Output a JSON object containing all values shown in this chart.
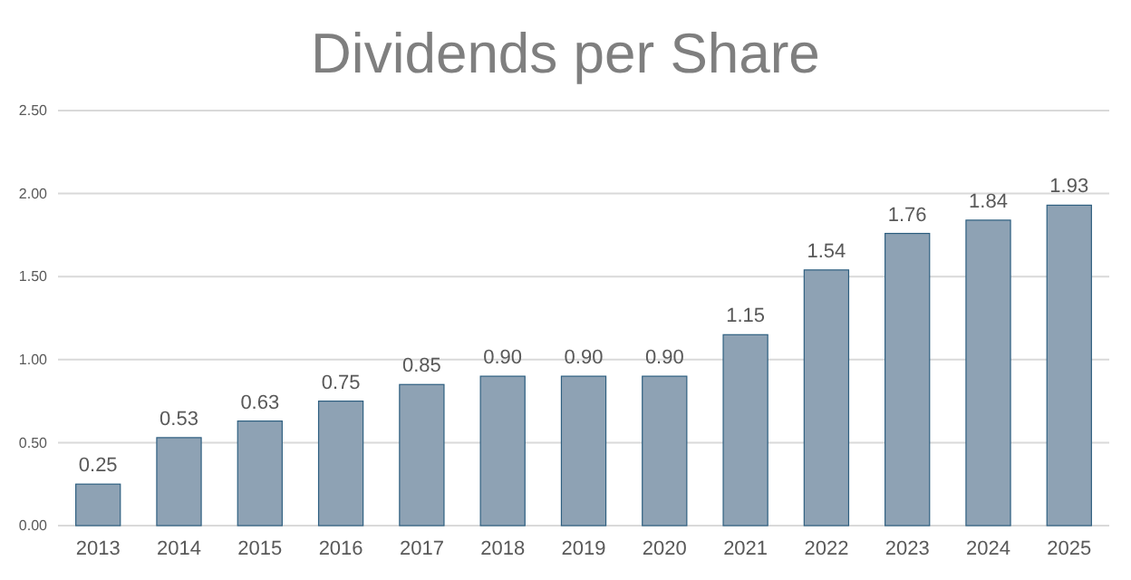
{
  "chart_data": {
    "type": "bar",
    "title": "Dividends per Share",
    "categories": [
      "2013",
      "2014",
      "2015",
      "2016",
      "2017",
      "2018",
      "2019",
      "2020",
      "2021",
      "2022",
      "2023",
      "2024",
      "2025"
    ],
    "values": [
      0.25,
      0.53,
      0.63,
      0.75,
      0.85,
      0.9,
      0.9,
      0.9,
      1.15,
      1.54,
      1.76,
      1.84,
      1.93
    ],
    "color": "#8ea2b4",
    "ylim": [
      0,
      2.5
    ],
    "yticks": [
      {
        "value": 0,
        "label": "0.00"
      },
      {
        "value": 0.5,
        "label": "0.50"
      },
      {
        "value": 1,
        "label": "1.00"
      },
      {
        "value": 1.5,
        "label": "1.50"
      },
      {
        "value": 2,
        "label": "2.00"
      },
      {
        "value": 2.5,
        "label": "2.50"
      }
    ],
    "value_labels": [
      "0.25",
      "0.53",
      "0.63",
      "0.75",
      "0.85",
      "0.90",
      "0.90",
      "0.90",
      "1.15",
      "1.54",
      "1.76",
      "1.84",
      "1.93"
    ],
    "grid": "y"
  }
}
